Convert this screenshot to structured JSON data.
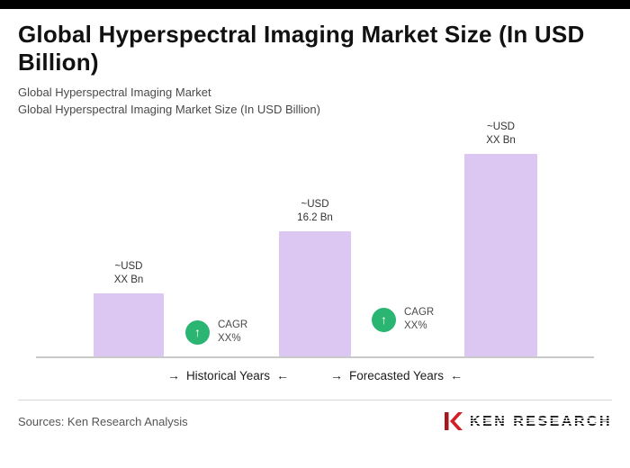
{
  "page": {
    "title": "Global Hyperspectral Imaging Market Size (In USD Billion)",
    "subtitle_line1": "Global Hyperspectral Imaging Market",
    "subtitle_line2": "Global Hyperspectral Imaging Market Size (In USD Billion)"
  },
  "chart_data": {
    "type": "bar",
    "title": "Global Hyperspectral Imaging Market Size (In USD Billion)",
    "value_unit": "USD Bn",
    "values": [
      8.2,
      16.2,
      26.2
    ],
    "values_note": "only middle bar labeled 16.2; others shown as XX, estimated from bar heights",
    "value_labels": [
      [
        "~USD",
        "XX Bn"
      ],
      [
        "~USD",
        "16.2 Bn"
      ],
      [
        "~USD",
        "XX Bn"
      ]
    ],
    "cagr_labels": [
      [
        "CAGR",
        "XX%"
      ],
      [
        "CAGR",
        "XX%"
      ]
    ],
    "period_labels": [
      "Historical Years",
      "Forecasted Years"
    ],
    "ylim": [
      0,
      28
    ],
    "grid": false,
    "legend": false
  },
  "icons": {
    "arrow_right": "→",
    "arrow_left": "←",
    "arrow_up": "↑"
  },
  "colors": {
    "bar": "#dcc6f2",
    "badge_green": "#2bb573",
    "logo_red": "#d32027",
    "logo_dark_red": "#9e1b1f",
    "top_bar": "#000000"
  },
  "footer": {
    "sources": "Sources: Ken Research Analysis",
    "logo_text": "KEN RESEARCH"
  }
}
